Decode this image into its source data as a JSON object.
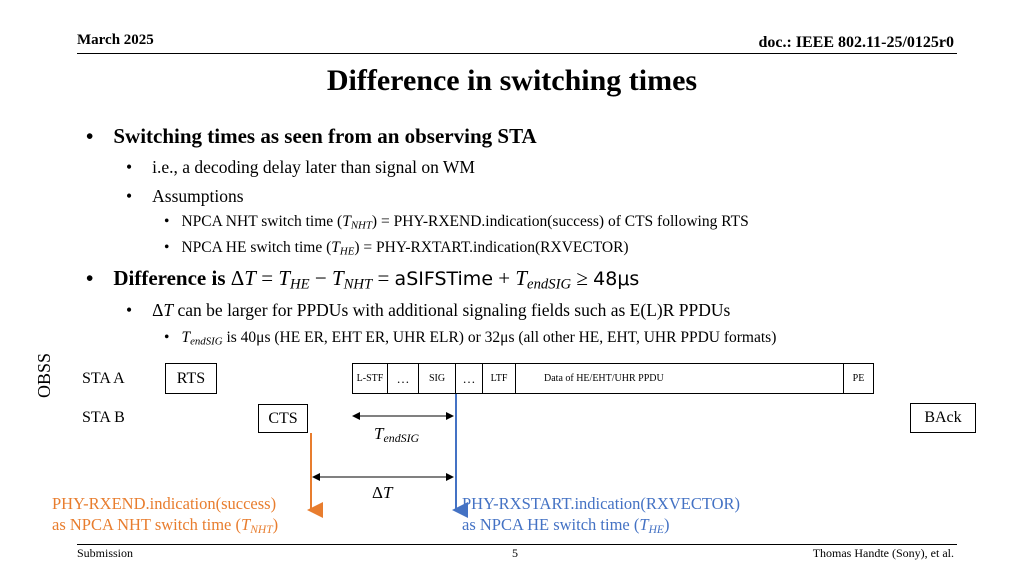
{
  "header": {
    "date": "March 2025",
    "doc": "doc.: IEEE 802.11-25/0125r0"
  },
  "title": "Difference in switching times",
  "bullets": {
    "b1": "Switching times as seen from an observing STA",
    "b1_sub1": "i.e., a decoding delay later than signal on WM",
    "b1_sub2": "Assumptions",
    "b1_sub2_a_pre": "NPCA NHT switch time (",
    "b1_sub2_a_post": ") = PHY-RXEND.indication(success) of CTS following RTS",
    "b1_sub2_b_pre": "NPCA HE switch time (",
    "b1_sub2_b_post": ") = PHY-RXTART.indication(RXVECTOR)",
    "b2_pre": "Difference is ",
    "b2_asifs": "aSIFSTime",
    "b2_end": "48μs",
    "b2_sub1": "can be larger for PPDUs with additional signaling fields such as E(L)R PPDUs",
    "b2_sub1_a": "is 40μs (HE ER, EHT ER, UHR ELR) or 32μs (all other HE, EHT, UHR PPDU formats)"
  },
  "math": {
    "T": "T",
    "delta": "Δ",
    "sub_nht": "NHT",
    "sub_he": "HE",
    "sub_endsig": "endSIG"
  },
  "diagram": {
    "obss": "OBSS",
    "sta_a": "STA A",
    "sta_b": "STA B",
    "rts": "RTS",
    "cts": "CTS",
    "back": "BAck",
    "lstf": "L-STF",
    "dots1": "…",
    "sig": "SIG",
    "dots2": "…",
    "ltf": "LTF",
    "data": "Data of HE/EHT/UHR PPDU",
    "pe": "PE",
    "orange_line1": "PHY-RXEND.indication(success)",
    "orange_line2_pre": "as NPCA NHT switch time (",
    "blue_line1": "PHY-RXSTART.indication(RXVECTOR)",
    "blue_line2_pre": "as NPCA HE switch time (",
    "close_paren": ")",
    "orange_color": "#E87D2E",
    "blue_color": "#4472C4"
  },
  "footer": {
    "left": "Submission",
    "page": "5",
    "right": "Thomas Handte (Sony), et al."
  }
}
